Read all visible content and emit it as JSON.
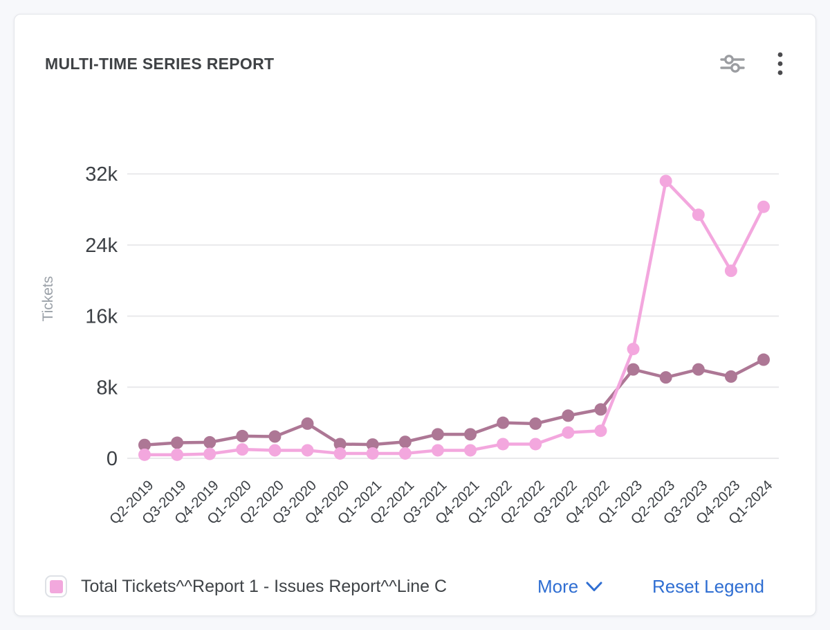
{
  "header": {
    "title": "MULTI-TIME SERIES REPORT"
  },
  "legend": {
    "item_label": "Total Tickets^^Report 1 - Issues Report^^Line C",
    "marker_color": "#f2a8dd",
    "more_label": "More",
    "reset_label": "Reset Legend",
    "link_color": "#2f6ed2"
  },
  "colors": {
    "grid": "#e9e9eb",
    "axis_tick_text": "#3c4045",
    "axis_title_text": "#9ba1a8",
    "icon_gray": "#9b9da1",
    "kebab_gray": "#4b4b4e"
  },
  "chart_data": {
    "type": "line",
    "title": "MULTI-TIME SERIES REPORT",
    "xlabel": "",
    "ylabel": "Tickets",
    "grid": true,
    "legend_position": "bottom",
    "ylim": [
      0,
      33500
    ],
    "y_ticks": [
      {
        "value": 0,
        "label": "0"
      },
      {
        "value": 8000,
        "label": "8k"
      },
      {
        "value": 16000,
        "label": "16k"
      },
      {
        "value": 24000,
        "label": "24k"
      },
      {
        "value": 32000,
        "label": "32k"
      }
    ],
    "categories": [
      "Q2-2019",
      "Q3-2019",
      "Q4-2019",
      "Q1-2020",
      "Q2-2020",
      "Q3-2020",
      "Q4-2020",
      "Q1-2021",
      "Q2-2021",
      "Q3-2021",
      "Q4-2021",
      "Q1-2022",
      "Q2-2022",
      "Q3-2022",
      "Q4-2022",
      "Q1-2023",
      "Q2-2023",
      "Q3-2023",
      "Q4-2023",
      "Q1-2024"
    ],
    "series": [
      {
        "name": "",
        "color": "#ad7795",
        "values": [
          1500,
          1750,
          1800,
          2500,
          2450,
          3900,
          1600,
          1550,
          1850,
          2700,
          2700,
          4000,
          3900,
          4800,
          5500,
          10000,
          9100,
          10000,
          9200,
          11100
        ]
      },
      {
        "name": "Total Tickets^^Report 1 - Issues Report^^Line C",
        "color": "#f3a7de",
        "values": [
          400,
          400,
          500,
          1000,
          900,
          900,
          550,
          550,
          550,
          900,
          900,
          1600,
          1600,
          2900,
          3100,
          12300,
          31200,
          27400,
          21100,
          28300
        ]
      }
    ]
  }
}
